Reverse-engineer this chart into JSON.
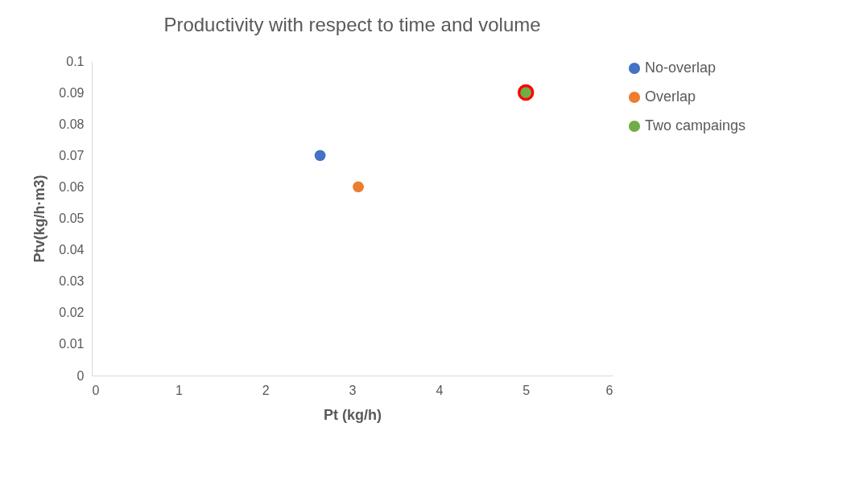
{
  "chart_data": {
    "type": "scatter",
    "title": "Productivity with respect to time and volume",
    "xlabel": "Pt (kg/h)",
    "ylabel": "Ptv(kg/h·m3)",
    "xlim": [
      0,
      6
    ],
    "xticks": [
      0,
      1,
      2,
      3,
      4,
      5,
      6
    ],
    "ylim": [
      0,
      0.1
    ],
    "yticks": [
      0,
      0.01,
      0.02,
      0.03,
      0.04,
      0.05,
      0.06,
      0.07,
      0.08,
      0.09,
      0.1
    ],
    "grid": false,
    "legend": "right",
    "marker": "circle",
    "series": [
      {
        "color": "#ff0000",
        "x": [
          5.0
        ],
        "values": [
          0.09
        ]
      },
      {
        "name": "No-overlap",
        "color": "#4472c4",
        "x": [
          2.63
        ],
        "values": [
          0.07
        ]
      },
      {
        "name": "Overlap",
        "color": "#ed7d31",
        "x": [
          3.07
        ],
        "values": [
          0.06
        ]
      },
      {
        "name": "Two campaings",
        "color": "#70ad47",
        "x": [
          5.0
        ],
        "values": [
          0.09
        ]
      }
    ]
  }
}
